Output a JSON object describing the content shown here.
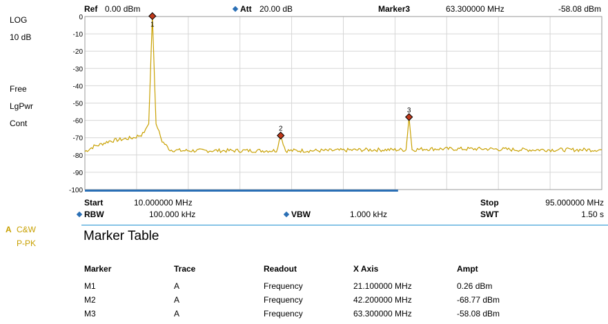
{
  "header": {
    "ref_label": "Ref",
    "ref_value": "0.00 dBm",
    "att_label": "Att",
    "att_value": "20.00 dB",
    "marker_label": "Marker3",
    "marker_freq": "63.300000 MHz",
    "marker_ampl": "-58.08 dBm"
  },
  "left_panel": {
    "scale_type": "LOG",
    "scale_div": "10 dB",
    "trigger": "Free",
    "detector": "LgPwr",
    "sweep_mode": "Cont",
    "trace_label_a": "A",
    "trace_mode": "C&W",
    "trace_detector": "P-PK"
  },
  "footer": {
    "start_label": "Start",
    "start_value": "10.000000 MHz",
    "stop_label": "Stop",
    "stop_value": "95.000000 MHz",
    "rbw_label": "RBW",
    "rbw_value": "100.000 kHz",
    "vbw_label": "VBW",
    "vbw_value": "1.000 kHz",
    "swt_label": "SWT",
    "swt_value": "1.50 s"
  },
  "marker_table": {
    "title": "Marker Table",
    "columns": [
      "Marker",
      "Trace",
      "Readout",
      "X Axis",
      "Ampt"
    ],
    "rows": [
      [
        "M1",
        "A",
        "Frequency",
        "21.100000 MHz",
        "0.26 dBm"
      ],
      [
        "M2",
        "A",
        "Frequency",
        "42.200000 MHz",
        "-68.77 dBm"
      ],
      [
        "M3",
        "A",
        "Frequency",
        "63.300000 MHz",
        "-58.08 dBm"
      ]
    ]
  },
  "colors": {
    "trace": "#c8a000",
    "marker_fill": "#c0391b",
    "grid": "#d6d6d6",
    "accent": "#2a6fb5"
  },
  "chart_data": {
    "type": "line",
    "title": "",
    "xlabel": "",
    "ylabel": "",
    "xlim": [
      10,
      95
    ],
    "ylim": [
      -100,
      0
    ],
    "y_ticks": [
      0,
      -10,
      -20,
      -30,
      -40,
      -50,
      -60,
      -70,
      -80,
      -90,
      -100
    ],
    "grid": true,
    "x_divisions": 10,
    "x_unit": "MHz",
    "y_unit": "dBm",
    "series": [
      {
        "x": [
          10,
          11.5,
          12.5,
          14,
          16,
          18,
          19.5,
          20.5,
          21.1,
          21.7,
          22.7,
          24,
          26,
          30,
          36,
          41.5,
          42.2,
          43,
          50,
          56,
          62.8,
          63.3,
          63.8,
          66,
          70,
          76,
          82,
          88,
          95
        ],
        "values": [
          -78,
          -75,
          -74,
          -72,
          -71,
          -70,
          -68,
          -62,
          0.26,
          -62,
          -72,
          -77,
          -77.5,
          -77.5,
          -77.5,
          -77.5,
          -68.77,
          -77.5,
          -77.5,
          -77,
          -77,
          -58.08,
          -77,
          -76.5,
          -76.5,
          -76.5,
          -77,
          -77,
          -77
        ]
      }
    ],
    "markers": [
      {
        "label": "1",
        "x": 21.1,
        "y": 0.26
      },
      {
        "label": "2",
        "x": 42.2,
        "y": -68.77
      },
      {
        "label": "3",
        "x": 63.3,
        "y": -58.08
      }
    ]
  }
}
